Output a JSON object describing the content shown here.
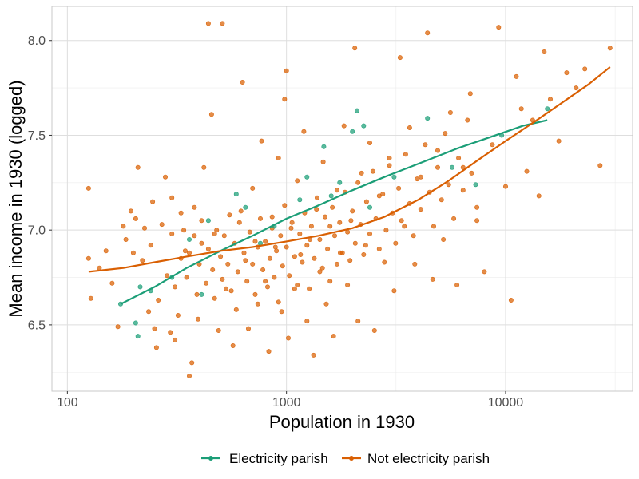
{
  "chart_data": {
    "type": "scatter",
    "title": "",
    "xlabel": "Population in 1930",
    "ylabel": "Mean income in 1930 (logged)",
    "x_scale": "log10",
    "xlim": [
      85,
      38000
    ],
    "ylim": [
      6.15,
      8.18
    ],
    "x_ticks": [
      100,
      1000,
      10000
    ],
    "x_tick_labels": [
      "100",
      "1000",
      "10000"
    ],
    "y_ticks": [
      6.5,
      7.0,
      7.5,
      8.0
    ],
    "y_tick_labels": [
      "6.5",
      "7.0",
      "7.5",
      "8.0"
    ],
    "grid": true,
    "legend_position": "bottom",
    "colors": {
      "electricity": "#1b9e77",
      "not_electricity": "#d95f02",
      "grid": "#dedede",
      "panel_border": "#c8c8c8"
    },
    "series": [
      {
        "name": "Electricity parish",
        "color": "#1b9e77",
        "points": [
          [
            175,
            6.61
          ],
          [
            205,
            6.51
          ],
          [
            210,
            6.44
          ],
          [
            215,
            6.7
          ],
          [
            240,
            6.68
          ],
          [
            300,
            6.75
          ],
          [
            360,
            6.95
          ],
          [
            410,
            6.66
          ],
          [
            440,
            7.05
          ],
          [
            590,
            7.19
          ],
          [
            650,
            7.12
          ],
          [
            760,
            6.93
          ],
          [
            880,
            7.02
          ],
          [
            1150,
            7.16
          ],
          [
            1240,
            7.28
          ],
          [
            1480,
            7.44
          ],
          [
            1600,
            7.18
          ],
          [
            1750,
            7.25
          ],
          [
            2000,
            7.52
          ],
          [
            2100,
            7.63
          ],
          [
            2250,
            7.55
          ],
          [
            2400,
            7.12
          ],
          [
            3100,
            7.28
          ],
          [
            4400,
            7.59
          ],
          [
            5700,
            7.33
          ],
          [
            7300,
            7.24
          ],
          [
            9600,
            7.5
          ],
          [
            15500,
            7.64
          ]
        ],
        "trend": [
          [
            175,
            6.61
          ],
          [
            250,
            6.7
          ],
          [
            350,
            6.8
          ],
          [
            500,
            6.89
          ],
          [
            700,
            6.97
          ],
          [
            1000,
            7.06
          ],
          [
            1400,
            7.13
          ],
          [
            2000,
            7.21
          ],
          [
            2800,
            7.28
          ],
          [
            4000,
            7.35
          ],
          [
            6000,
            7.43
          ],
          [
            8500,
            7.49
          ],
          [
            12000,
            7.55
          ],
          [
            15500,
            7.58
          ]
        ]
      },
      {
        "name": "Not electricity parish",
        "color": "#d95f02",
        "points": [
          [
            125,
            7.22
          ],
          [
            125,
            6.85
          ],
          [
            128,
            6.64
          ],
          [
            140,
            6.8
          ],
          [
            150,
            6.89
          ],
          [
            160,
            6.72
          ],
          [
            170,
            6.49
          ],
          [
            180,
            7.02
          ],
          [
            185,
            6.95
          ],
          [
            195,
            7.1
          ],
          [
            200,
            6.88
          ],
          [
            205,
            7.06
          ],
          [
            210,
            7.33
          ],
          [
            220,
            6.84
          ],
          [
            225,
            7.01
          ],
          [
            235,
            6.57
          ],
          [
            240,
            6.92
          ],
          [
            245,
            7.15
          ],
          [
            250,
            6.48
          ],
          [
            255,
            6.38
          ],
          [
            260,
            6.63
          ],
          [
            270,
            7.03
          ],
          [
            280,
            7.28
          ],
          [
            285,
            6.76
          ],
          [
            295,
            6.46
          ],
          [
            300,
            7.17
          ],
          [
            310,
            6.42
          ],
          [
            320,
            6.55
          ],
          [
            330,
            7.09
          ],
          [
            345,
            6.89
          ],
          [
            360,
            6.23
          ],
          [
            370,
            6.3
          ],
          [
            380,
            7.12
          ],
          [
            395,
            6.53
          ],
          [
            410,
            6.93
          ],
          [
            420,
            7.33
          ],
          [
            440,
            8.09
          ],
          [
            455,
            7.61
          ],
          [
            470,
            6.98
          ],
          [
            490,
            6.47
          ],
          [
            510,
            8.09
          ],
          [
            530,
            6.69
          ],
          [
            550,
            7.08
          ],
          [
            570,
            6.39
          ],
          [
            590,
            6.58
          ],
          [
            610,
            7.04
          ],
          [
            630,
            7.78
          ],
          [
            650,
            6.84
          ],
          [
            670,
            6.48
          ],
          [
            700,
            7.22
          ],
          [
            720,
            6.94
          ],
          [
            740,
            6.61
          ],
          [
            770,
            7.47
          ],
          [
            800,
            6.73
          ],
          [
            830,
            6.36
          ],
          [
            860,
            7.07
          ],
          [
            890,
            6.91
          ],
          [
            920,
            7.38
          ],
          [
            950,
            6.57
          ],
          [
            980,
            7.69
          ],
          [
            1000,
            7.84
          ],
          [
            1020,
            6.43
          ],
          [
            1050,
            7.01
          ],
          [
            1090,
            6.69
          ],
          [
            1120,
            7.26
          ],
          [
            1160,
            6.87
          ],
          [
            1200,
            7.52
          ],
          [
            1240,
            6.52
          ],
          [
            1280,
            6.95
          ],
          [
            1330,
            6.34
          ],
          [
            1370,
            7.11
          ],
          [
            1420,
            6.78
          ],
          [
            1470,
            7.36
          ],
          [
            1520,
            6.61
          ],
          [
            1580,
            7.02
          ],
          [
            1640,
            6.44
          ],
          [
            1700,
            7.21
          ],
          [
            1760,
            6.88
          ],
          [
            1830,
            7.55
          ],
          [
            1900,
            6.71
          ],
          [
            1970,
            7.05
          ],
          [
            2050,
            7.96
          ],
          [
            2120,
            6.52
          ],
          [
            2200,
            7.3
          ],
          [
            2300,
            6.92
          ],
          [
            2400,
            7.46
          ],
          [
            2520,
            6.47
          ],
          [
            2650,
            7.18
          ],
          [
            2800,
            6.83
          ],
          [
            2950,
            7.38
          ],
          [
            3100,
            6.68
          ],
          [
            3300,
            7.91
          ],
          [
            3450,
            7.02
          ],
          [
            3650,
            7.54
          ],
          [
            3850,
            6.82
          ],
          [
            4100,
            7.28
          ],
          [
            4400,
            8.04
          ],
          [
            4650,
            6.74
          ],
          [
            4900,
            7.42
          ],
          [
            5200,
            6.95
          ],
          [
            5600,
            7.62
          ],
          [
            6000,
            6.71
          ],
          [
            6400,
            7.33
          ],
          [
            6900,
            7.72
          ],
          [
            7400,
            7.05
          ],
          [
            8000,
            6.78
          ],
          [
            8700,
            7.45
          ],
          [
            9300,
            8.07
          ],
          [
            10000,
            7.23
          ],
          [
            10600,
            6.63
          ],
          [
            11200,
            7.81
          ],
          [
            11800,
            7.64
          ],
          [
            12500,
            7.31
          ],
          [
            13300,
            7.58
          ],
          [
            14200,
            7.18
          ],
          [
            15000,
            7.94
          ],
          [
            16000,
            7.69
          ],
          [
            17500,
            7.47
          ],
          [
            19000,
            7.83
          ],
          [
            21000,
            7.75
          ],
          [
            23000,
            7.85
          ],
          [
            27000,
            7.34
          ],
          [
            30000,
            7.96
          ],
          [
            300,
            6.98
          ],
          [
            310,
            6.7
          ],
          [
            330,
            6.85
          ],
          [
            340,
            7.0
          ],
          [
            350,
            6.75
          ],
          [
            360,
            6.88
          ],
          [
            380,
            6.97
          ],
          [
            390,
            6.66
          ],
          [
            400,
            6.82
          ],
          [
            410,
            7.05
          ],
          [
            430,
            6.72
          ],
          [
            440,
            6.9
          ],
          [
            460,
            6.79
          ],
          [
            470,
            6.64
          ],
          [
            480,
            7.0
          ],
          [
            500,
            6.86
          ],
          [
            510,
            6.74
          ],
          [
            520,
            6.97
          ],
          [
            540,
            6.82
          ],
          [
            560,
            6.68
          ],
          [
            580,
            6.93
          ],
          [
            600,
            6.78
          ],
          [
            620,
            7.1
          ],
          [
            640,
            6.88
          ],
          [
            660,
            6.73
          ],
          [
            680,
            6.99
          ],
          [
            700,
            6.82
          ],
          [
            720,
            6.66
          ],
          [
            740,
            6.91
          ],
          [
            760,
            7.06
          ],
          [
            780,
            6.79
          ],
          [
            800,
            6.94
          ],
          [
            820,
            6.7
          ],
          [
            840,
            6.85
          ],
          [
            860,
            7.01
          ],
          [
            880,
            6.75
          ],
          [
            900,
            6.89
          ],
          [
            920,
            6.62
          ],
          [
            940,
            6.97
          ],
          [
            960,
            6.81
          ],
          [
            980,
            7.13
          ],
          [
            1000,
            6.91
          ],
          [
            1030,
            6.76
          ],
          [
            1060,
            7.04
          ],
          [
            1090,
            6.86
          ],
          [
            1120,
            6.71
          ],
          [
            1150,
            6.98
          ],
          [
            1180,
            6.83
          ],
          [
            1210,
            7.09
          ],
          [
            1240,
            6.92
          ],
          [
            1270,
            6.69
          ],
          [
            1300,
            7.02
          ],
          [
            1340,
            6.85
          ],
          [
            1380,
            7.17
          ],
          [
            1420,
            6.95
          ],
          [
            1460,
            6.8
          ],
          [
            1500,
            7.07
          ],
          [
            1540,
            6.9
          ],
          [
            1580,
            6.73
          ],
          [
            1620,
            7.12
          ],
          [
            1660,
            6.97
          ],
          [
            1700,
            6.82
          ],
          [
            1750,
            7.04
          ],
          [
            1800,
            6.88
          ],
          [
            1850,
            7.2
          ],
          [
            1900,
            6.99
          ],
          [
            1950,
            6.84
          ],
          [
            2000,
            7.1
          ],
          [
            2060,
            6.93
          ],
          [
            2120,
            7.25
          ],
          [
            2180,
            7.03
          ],
          [
            2250,
            6.87
          ],
          [
            2320,
            7.15
          ],
          [
            2400,
            6.98
          ],
          [
            2480,
            7.31
          ],
          [
            2560,
            7.06
          ],
          [
            2650,
            6.9
          ],
          [
            2750,
            7.19
          ],
          [
            2850,
            7.0
          ],
          [
            2950,
            7.34
          ],
          [
            3050,
            7.09
          ],
          [
            3150,
            6.93
          ],
          [
            3250,
            7.22
          ],
          [
            3350,
            7.05
          ],
          [
            3500,
            7.4
          ],
          [
            3650,
            7.14
          ],
          [
            3800,
            6.97
          ],
          [
            3950,
            7.27
          ],
          [
            4100,
            7.11
          ],
          [
            4300,
            7.45
          ],
          [
            4500,
            7.2
          ],
          [
            4700,
            7.02
          ],
          [
            4900,
            7.33
          ],
          [
            5100,
            7.16
          ],
          [
            5300,
            7.51
          ],
          [
            5500,
            7.24
          ],
          [
            5800,
            7.06
          ],
          [
            6100,
            7.38
          ],
          [
            6400,
            7.21
          ],
          [
            6700,
            7.58
          ],
          [
            7000,
            7.3
          ],
          [
            7400,
            7.12
          ]
        ],
        "trend": [
          [
            125,
            6.78
          ],
          [
            180,
            6.8
          ],
          [
            250,
            6.83
          ],
          [
            350,
            6.86
          ],
          [
            500,
            6.89
          ],
          [
            700,
            6.91
          ],
          [
            1000,
            6.94
          ],
          [
            1400,
            6.97
          ],
          [
            2000,
            7.01
          ],
          [
            2800,
            7.07
          ],
          [
            4000,
            7.16
          ],
          [
            5500,
            7.26
          ],
          [
            7500,
            7.37
          ],
          [
            10000,
            7.47
          ],
          [
            13500,
            7.57
          ],
          [
            18000,
            7.67
          ],
          [
            24000,
            7.77
          ],
          [
            30000,
            7.86
          ]
        ]
      }
    ]
  }
}
